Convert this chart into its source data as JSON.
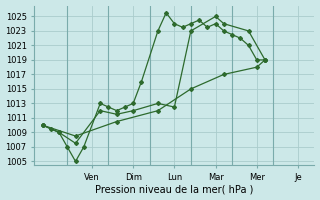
{
  "xlabel": "Pression niveau de la mer( hPa )",
  "background_color": "#cce8e8",
  "grid_color": "#aacccc",
  "line_color": "#2d6a2d",
  "ylim": [
    1004.5,
    1026.5
  ],
  "yticks": [
    1005,
    1007,
    1009,
    1011,
    1013,
    1015,
    1017,
    1019,
    1021,
    1023,
    1025
  ],
  "x_day_labels": [
    "Ven",
    "Dim",
    "Lun",
    "Mar",
    "Mer",
    "Je"
  ],
  "x_day_positions": [
    3.0,
    5.5,
    8.0,
    10.5,
    13.0,
    15.5
  ],
  "xlim": [
    -0.5,
    16.5
  ],
  "vlines": [
    1.5,
    4.0,
    6.5,
    9.0,
    11.5,
    14.0
  ],
  "line1_x": [
    0,
    0.5,
    1.0,
    1.5,
    2.0,
    2.5,
    3.5,
    4.0,
    4.5,
    5.0,
    5.5,
    6.0,
    7.0,
    7.5,
    8.0,
    8.5,
    9.0,
    9.5,
    10.0,
    10.5,
    11.0,
    11.5,
    12.0,
    12.5,
    13.0,
    13.5
  ],
  "line1_y": [
    1010,
    1009.5,
    1009,
    1007,
    1005,
    1007,
    1013,
    1012.5,
    1012,
    1012.5,
    1013,
    1016,
    1023,
    1025.5,
    1024,
    1023.5,
    1024,
    1024.5,
    1023.5,
    1024,
    1023,
    1022.5,
    1022,
    1021,
    1019,
    1019
  ],
  "line2_x": [
    0,
    1.0,
    2.0,
    3.5,
    4.5,
    5.5,
    7.0,
    8.0,
    9.0,
    10.5,
    11.0,
    12.5,
    13.5
  ],
  "line2_y": [
    1010,
    1009,
    1007.5,
    1012,
    1011.5,
    1012,
    1013,
    1012.5,
    1023,
    1025,
    1024,
    1023,
    1019
  ],
  "line3_x": [
    0,
    2.0,
    4.5,
    7.0,
    9.0,
    11.0,
    13.0,
    13.5
  ],
  "line3_y": [
    1010,
    1008.5,
    1010.5,
    1012,
    1015,
    1017,
    1018,
    1019
  ]
}
